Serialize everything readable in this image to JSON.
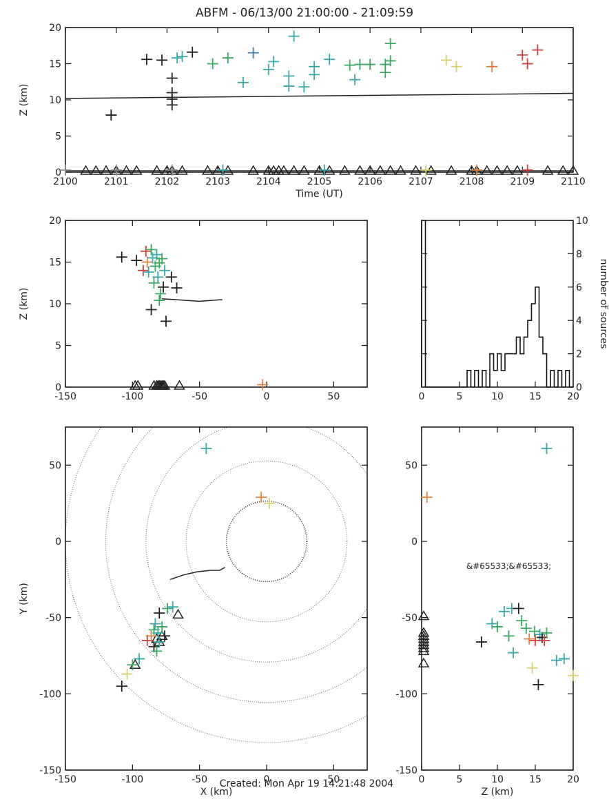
{
  "figure": {
    "title": "ABFM - 06/13/00 21:00:00 - 21:09:59",
    "footer": "Created: Mon Apr 19 14:21:48 2004"
  },
  "colors": {
    "black": "#222222",
    "green": "#3aa860",
    "teal": "#3aa8a8",
    "blue": "#3f7fb0",
    "yellow": "#d8d070",
    "orange": "#e08040",
    "red": "#d04040",
    "gray": "#888888"
  },
  "chart_data": [
    {
      "id": "time-height",
      "type": "scatter",
      "xlabel": "Time (UT)",
      "ylabel": "Z (km)",
      "xlim": [
        2100,
        2110
      ],
      "ylim": [
        0,
        20
      ],
      "xticks": [
        2100,
        2101,
        2102,
        2103,
        2104,
        2105,
        2106,
        2107,
        2108,
        2109,
        2110
      ],
      "xticklabels": [
        "2100",
        "2101",
        "2102",
        "2103",
        "2104",
        "2105",
        "2106",
        "2107",
        "2108",
        "2109",
        "2110"
      ],
      "yticks": [
        0,
        5,
        10,
        15,
        20
      ],
      "yticklabels": [
        "0",
        "5",
        "10",
        "15",
        "20"
      ],
      "trend_line": [
        [
          2100,
          10.2
        ],
        [
          2110,
          10.9
        ]
      ],
      "sources": [
        {
          "x": 2100.9,
          "y": 7.9,
          "c": "black"
        },
        {
          "x": 2101.6,
          "y": 15.6,
          "c": "black"
        },
        {
          "x": 2101.9,
          "y": 15.5,
          "c": "black"
        },
        {
          "x": 2102.1,
          "y": 13.0,
          "c": "black"
        },
        {
          "x": 2102.1,
          "y": 11.0,
          "c": "black"
        },
        {
          "x": 2102.1,
          "y": 9.3,
          "c": "black"
        },
        {
          "x": 2102.1,
          "y": 10.1,
          "c": "black"
        },
        {
          "x": 2102.2,
          "y": 15.8,
          "c": "teal"
        },
        {
          "x": 2102.3,
          "y": 16.0,
          "c": "teal"
        },
        {
          "x": 2102.5,
          "y": 16.6,
          "c": "black"
        },
        {
          "x": 2102.9,
          "y": 15.0,
          "c": "green"
        },
        {
          "x": 2103.2,
          "y": 15.8,
          "c": "green"
        },
        {
          "x": 2103.5,
          "y": 12.4,
          "c": "teal"
        },
        {
          "x": 2103.7,
          "y": 16.5,
          "c": "blue"
        },
        {
          "x": 2104.0,
          "y": 14.2,
          "c": "teal"
        },
        {
          "x": 2104.1,
          "y": 15.3,
          "c": "teal"
        },
        {
          "x": 2104.4,
          "y": 11.9,
          "c": "teal"
        },
        {
          "x": 2104.4,
          "y": 13.3,
          "c": "teal"
        },
        {
          "x": 2104.5,
          "y": 18.8,
          "c": "teal"
        },
        {
          "x": 2104.7,
          "y": 11.8,
          "c": "teal"
        },
        {
          "x": 2104.9,
          "y": 13.5,
          "c": "teal"
        },
        {
          "x": 2104.9,
          "y": 14.6,
          "c": "teal"
        },
        {
          "x": 2105.2,
          "y": 15.6,
          "c": "teal"
        },
        {
          "x": 2105.6,
          "y": 14.8,
          "c": "green"
        },
        {
          "x": 2105.7,
          "y": 12.8,
          "c": "teal"
        },
        {
          "x": 2105.8,
          "y": 14.9,
          "c": "green"
        },
        {
          "x": 2106.0,
          "y": 14.9,
          "c": "green"
        },
        {
          "x": 2106.3,
          "y": 14.9,
          "c": "green"
        },
        {
          "x": 2106.4,
          "y": 15.4,
          "c": "green"
        },
        {
          "x": 2106.4,
          "y": 17.8,
          "c": "green"
        },
        {
          "x": 2106.3,
          "y": 13.8,
          "c": "green"
        },
        {
          "x": 2107.5,
          "y": 15.5,
          "c": "yellow"
        },
        {
          "x": 2107.7,
          "y": 14.6,
          "c": "yellow"
        },
        {
          "x": 2108.4,
          "y": 14.6,
          "c": "orange"
        },
        {
          "x": 2109.0,
          "y": 16.2,
          "c": "red"
        },
        {
          "x": 2109.1,
          "y": 15.0,
          "c": "red"
        },
        {
          "x": 2109.3,
          "y": 16.9,
          "c": "red"
        },
        {
          "x": 2100.0,
          "y": 0.3,
          "c": "gray"
        },
        {
          "x": 2101.0,
          "y": 0.3,
          "c": "gray"
        },
        {
          "x": 2102.1,
          "y": 0.3,
          "c": "gray"
        },
        {
          "x": 2103.1,
          "y": 0.3,
          "c": "teal"
        },
        {
          "x": 2105.1,
          "y": 0.3,
          "c": "teal"
        },
        {
          "x": 2107.1,
          "y": 0.3,
          "c": "yellow"
        },
        {
          "x": 2108.1,
          "y": 0.3,
          "c": "orange"
        },
        {
          "x": 2109.1,
          "y": 0.3,
          "c": "red"
        }
      ],
      "stations": [
        2100.4,
        2100.6,
        2100.8,
        2101.0,
        2101.2,
        2101.4,
        2101.8,
        2102.0,
        2102.1,
        2102.3,
        2102.8,
        2103.0,
        2103.2,
        2103.7,
        2104.0,
        2104.1,
        2104.2,
        2104.3,
        2104.5,
        2104.7,
        2105.0,
        2105.2,
        2105.5,
        2105.8,
        2106.0,
        2106.2,
        2106.4,
        2106.6,
        2106.9,
        2107.2,
        2107.6,
        2108.0,
        2108.1,
        2108.3,
        2108.5,
        2108.7,
        2108.9,
        2109.5,
        2109.8,
        2110.0
      ]
    },
    {
      "id": "x-height",
      "type": "scatter",
      "xlabel": "",
      "ylabel": "Z (km)",
      "xlim": [
        -150,
        75
      ],
      "ylim": [
        0,
        20
      ],
      "xticks": [
        -150,
        -100,
        -50,
        0,
        50
      ],
      "xticklabels": [
        "-150",
        "-100",
        "-50",
        "0",
        "50"
      ],
      "yticks": [
        0,
        5,
        10,
        15,
        20
      ],
      "yticklabels": [
        "0",
        "5",
        "10",
        "15",
        "20"
      ],
      "trend_line": [
        [
          -78,
          10.6
        ],
        [
          -50,
          10.3
        ],
        [
          -33,
          10.5
        ]
      ],
      "sources": [
        {
          "x": -108,
          "y": 15.6,
          "c": "black"
        },
        {
          "x": -97,
          "y": 15.2,
          "c": "black"
        },
        {
          "x": -92,
          "y": 14.0,
          "c": "red"
        },
        {
          "x": -90,
          "y": 16.3,
          "c": "red"
        },
        {
          "x": -89,
          "y": 15.0,
          "c": "orange"
        },
        {
          "x": -88,
          "y": 13.8,
          "c": "teal"
        },
        {
          "x": -86,
          "y": 16.5,
          "c": "green"
        },
        {
          "x": -85,
          "y": 15.5,
          "c": "teal"
        },
        {
          "x": -84,
          "y": 12.5,
          "c": "green"
        },
        {
          "x": -83,
          "y": 14.5,
          "c": "green"
        },
        {
          "x": -82,
          "y": 15.9,
          "c": "teal"
        },
        {
          "x": -81,
          "y": 13.2,
          "c": "teal"
        },
        {
          "x": -80,
          "y": 14.9,
          "c": "green"
        },
        {
          "x": -79,
          "y": 11.2,
          "c": "green"
        },
        {
          "x": -78,
          "y": 15.4,
          "c": "green"
        },
        {
          "x": -77,
          "y": 12.0,
          "c": "black"
        },
        {
          "x": -76,
          "y": 14.0,
          "c": "teal"
        },
        {
          "x": -80,
          "y": 10.4,
          "c": "green"
        },
        {
          "x": -86,
          "y": 9.3,
          "c": "black"
        },
        {
          "x": -75,
          "y": 7.9,
          "c": "black"
        },
        {
          "x": -71,
          "y": 13.2,
          "c": "black"
        },
        {
          "x": -67,
          "y": 11.9,
          "c": "black"
        },
        {
          "x": -3,
          "y": 0.3,
          "c": "orange"
        }
      ],
      "stations": [
        -98,
        -96,
        -84,
        -82,
        -81,
        -80,
        -79,
        -78,
        -77,
        -76,
        -65
      ]
    },
    {
      "id": "height-histogram",
      "type": "bar",
      "xlabel": "",
      "ylabel": "number of sources",
      "xlim": [
        0,
        20
      ],
      "ylim": [
        0,
        10
      ],
      "xticks": [
        0,
        5,
        10,
        15,
        20
      ],
      "xticklabels": [
        "0",
        "5",
        "10",
        "15",
        "20"
      ],
      "yticks": [
        0,
        2,
        4,
        6,
        8,
        10
      ],
      "yticklabels": [
        "0",
        "2",
        "4",
        "6",
        "8",
        "10"
      ],
      "bin_width": 0.5,
      "bin_starts": [
        0,
        0.5,
        1,
        1.5,
        2,
        2.5,
        3,
        3.5,
        4,
        4.5,
        5,
        5.5,
        6,
        6.5,
        7,
        7.5,
        8,
        8.5,
        9,
        9.5,
        10,
        10.5,
        11,
        11.5,
        12,
        12.5,
        13,
        13.5,
        14,
        14.5,
        15,
        15.5,
        16,
        16.5,
        17,
        17.5,
        18,
        18.5,
        19,
        19.5
      ],
      "counts": [
        10,
        0,
        0,
        0,
        0,
        0,
        0,
        0,
        0,
        0,
        0,
        0,
        1,
        0,
        1,
        0,
        1,
        0,
        2,
        1,
        2,
        1,
        2,
        2,
        2,
        3,
        2,
        3,
        4,
        5,
        6,
        3,
        2,
        0,
        1,
        0,
        1,
        0,
        1,
        0
      ]
    },
    {
      "id": "plan-view",
      "type": "scatter",
      "xlabel": "X (km)",
      "ylabel": "Y (km)",
      "xlim": [
        -150,
        75
      ],
      "ylim": [
        -150,
        75
      ],
      "xticks": [
        -150,
        -100,
        -50,
        0,
        50
      ],
      "xticklabels": [
        "-150",
        "-100",
        "-50",
        "0",
        "50"
      ],
      "yticks": [
        -150,
        -100,
        -50,
        0,
        50
      ],
      "yticklabels": [
        "-150",
        "-100",
        "-50",
        "0",
        "50"
      ],
      "range_rings_km": [
        30,
        60,
        90,
        120,
        150
      ],
      "track": [
        [
          -72,
          -25
        ],
        [
          -62,
          -22
        ],
        [
          -52,
          -20
        ],
        [
          -42,
          -19
        ],
        [
          -35,
          -19
        ],
        [
          -31,
          -17
        ]
      ],
      "sources": [
        {
          "x": -108,
          "y": -95,
          "c": "black"
        },
        {
          "x": -104,
          "y": -87,
          "c": "yellow"
        },
        {
          "x": -100,
          "y": -81,
          "c": "green"
        },
        {
          "x": -95,
          "y": -77,
          "c": "teal"
        },
        {
          "x": -89,
          "y": -65,
          "c": "red"
        },
        {
          "x": -86,
          "y": -62,
          "c": "orange"
        },
        {
          "x": -84,
          "y": -58,
          "c": "green"
        },
        {
          "x": -84,
          "y": -69,
          "c": "black"
        },
        {
          "x": -83,
          "y": -54,
          "c": "teal"
        },
        {
          "x": -82,
          "y": -72,
          "c": "green"
        },
        {
          "x": -81,
          "y": -60,
          "c": "teal"
        },
        {
          "x": -80,
          "y": -47,
          "c": "black"
        },
        {
          "x": -80,
          "y": -66,
          "c": "teal"
        },
        {
          "x": -78,
          "y": -56,
          "c": "green"
        },
        {
          "x": -76,
          "y": -62,
          "c": "black"
        },
        {
          "x": -74,
          "y": -44,
          "c": "green"
        },
        {
          "x": -70,
          "y": -43,
          "c": "teal"
        },
        {
          "x": -45,
          "y": 61,
          "c": "teal"
        },
        {
          "x": -4,
          "y": 29,
          "c": "orange"
        },
        {
          "x": 2,
          "y": 25,
          "c": "yellow"
        }
      ],
      "stations": [
        [
          -98,
          -81
        ],
        [
          -82,
          -64
        ],
        [
          -80,
          -66
        ],
        [
          -78,
          -62
        ],
        [
          -66,
          -48
        ]
      ]
    },
    {
      "id": "height-y",
      "type": "scatter",
      "xlabel": "Z (km)",
      "ylabel": "",
      "xlim": [
        0,
        20
      ],
      "ylim": [
        -150,
        75
      ],
      "xticks": [
        0,
        5,
        10,
        15,
        20
      ],
      "xticklabels": [
        "0",
        "5",
        "10",
        "15",
        "20"
      ],
      "yticks": [
        -150,
        -100,
        -50,
        0,
        50
      ],
      "yticklabels": [
        "-150",
        "-100",
        "-50",
        "0",
        "50"
      ],
      "sources": [
        {
          "x": 0.7,
          "y": 29,
          "c": "orange"
        },
        {
          "x": 16.5,
          "y": 61,
          "c": "teal"
        },
        {
          "x": 7.9,
          "y": -66,
          "c": "black"
        },
        {
          "x": 9.3,
          "y": -54,
          "c": "teal"
        },
        {
          "x": 10.0,
          "y": -56,
          "c": "green"
        },
        {
          "x": 10.9,
          "y": -46,
          "c": "teal"
        },
        {
          "x": 11.5,
          "y": -62,
          "c": "green"
        },
        {
          "x": 11.9,
          "y": -44,
          "c": "teal"
        },
        {
          "x": 12.1,
          "y": -73,
          "c": "teal"
        },
        {
          "x": 12.8,
          "y": -44,
          "c": "black"
        },
        {
          "x": 13.2,
          "y": -52,
          "c": "green"
        },
        {
          "x": 13.8,
          "y": -57,
          "c": "green"
        },
        {
          "x": 14.2,
          "y": -64,
          "c": "orange"
        },
        {
          "x": 14.6,
          "y": -83,
          "c": "yellow"
        },
        {
          "x": 14.9,
          "y": -59,
          "c": "green"
        },
        {
          "x": 15.0,
          "y": -65,
          "c": "red"
        },
        {
          "x": 15.4,
          "y": -94,
          "c": "black"
        },
        {
          "x": 15.6,
          "y": -61,
          "c": "teal"
        },
        {
          "x": 15.9,
          "y": -63,
          "c": "black"
        },
        {
          "x": 16.2,
          "y": -65,
          "c": "red"
        },
        {
          "x": 16.5,
          "y": -60,
          "c": "green"
        },
        {
          "x": 17.8,
          "y": -78,
          "c": "teal"
        },
        {
          "x": 18.8,
          "y": -77,
          "c": "teal"
        },
        {
          "x": 20.0,
          "y": -88,
          "c": "yellow"
        }
      ],
      "stations": [
        -49,
        -60,
        -62,
        -64,
        -66,
        -68,
        -70,
        -72,
        -80
      ],
      "annotation": {
        "x": 11.5,
        "y": -18,
        "text": "&#65533;&#65533;"
      }
    }
  ]
}
